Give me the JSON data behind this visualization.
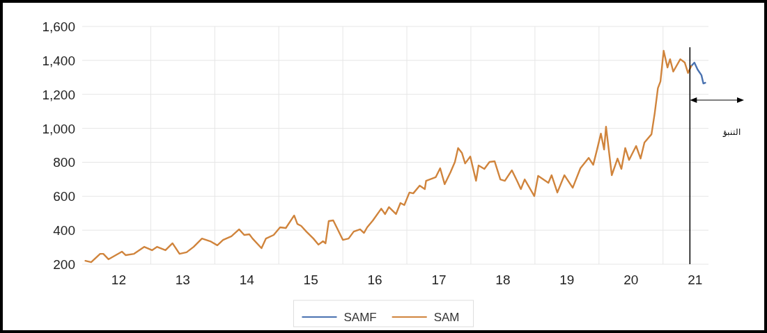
{
  "chart_data": {
    "type": "line",
    "xlim": [
      11.43,
      21.21
    ],
    "xticks": [
      12,
      {
        "value": 12.5,
        "label": null
      },
      13,
      {
        "value": 13.5,
        "label": null
      },
      14,
      {
        "value": 14.5,
        "label": null
      },
      15,
      {
        "value": 15.5,
        "label": null
      },
      16,
      {
        "value": 16.5,
        "label": null
      },
      17,
      {
        "value": 17.5,
        "label": null
      },
      18,
      {
        "value": 18.5,
        "label": null
      },
      19,
      {
        "value": 19.5,
        "label": null
      },
      20,
      {
        "value": 20.5,
        "label": null
      },
      21
    ],
    "ylim": [
      200,
      1600
    ],
    "yticks": [
      {
        "value": 200,
        "label": "200"
      },
      {
        "value": 400,
        "label": "400"
      },
      {
        "value": 600,
        "label": "600"
      },
      {
        "value": 800,
        "label": "800"
      },
      {
        "value": 1000,
        "label": "1,000"
      },
      {
        "value": 1200,
        "label": "1,200"
      },
      {
        "value": 1400,
        "label": "1,400"
      },
      {
        "value": 1600,
        "label": "1,600"
      }
    ],
    "grid": true,
    "legend": "bottom",
    "marker": "none",
    "line_style": "solid",
    "series": [
      {
        "name": "SAMF",
        "color": "#4a72b0",
        "x": [
          20.94,
          20.99,
          21.04,
          21.1,
          21.13,
          21.16
        ],
        "values": [
          1366,
          1387,
          1346,
          1313,
          1264,
          1268
        ]
      },
      {
        "name": "SAM",
        "color": "#d0843c",
        "x": [
          11.48,
          11.57,
          11.71,
          11.76,
          11.84,
          12.05,
          12.11,
          12.24,
          12.4,
          12.52,
          12.6,
          12.73,
          12.84,
          12.95,
          13.06,
          13.17,
          13.3,
          13.43,
          13.54,
          13.63,
          13.76,
          13.88,
          13.96,
          14.04,
          14.09,
          14.23,
          14.3,
          14.42,
          14.52,
          14.61,
          14.74,
          14.79,
          14.85,
          14.93,
          15.04,
          15.12,
          15.19,
          15.23,
          15.28,
          15.35,
          15.42,
          15.5,
          15.59,
          15.67,
          15.77,
          15.83,
          15.88,
          15.97,
          16.1,
          16.16,
          16.22,
          16.33,
          16.4,
          16.46,
          16.54,
          16.6,
          16.7,
          16.78,
          16.8,
          16.95,
          17.02,
          17.09,
          17.18,
          17.25,
          17.3,
          17.36,
          17.41,
          17.49,
          17.58,
          17.62,
          17.71,
          17.79,
          17.87,
          17.96,
          18.03,
          18.14,
          18.22,
          18.28,
          18.34,
          18.49,
          18.55,
          18.71,
          18.76,
          18.85,
          18.96,
          19.09,
          19.21,
          19.34,
          19.41,
          19.47,
          19.53,
          19.58,
          19.61,
          19.7,
          19.79,
          19.85,
          19.91,
          19.97,
          20.08,
          20.15,
          20.21,
          20.32,
          20.37,
          20.42,
          20.46,
          20.51,
          20.57,
          20.61,
          20.66,
          20.77,
          20.84,
          20.89,
          20.94
        ],
        "values": [
          220,
          212,
          261,
          261,
          229,
          274,
          253,
          261,
          302,
          282,
          302,
          282,
          323,
          261,
          270,
          302,
          351,
          335,
          311,
          343,
          364,
          405,
          372,
          376,
          351,
          294,
          351,
          372,
          417,
          413,
          487,
          437,
          425,
          392,
          351,
          315,
          335,
          323,
          454,
          458,
          405,
          343,
          351,
          392,
          405,
          384,
          417,
          458,
          527,
          495,
          536,
          495,
          560,
          548,
          622,
          617,
          663,
          642,
          691,
          712,
          765,
          671,
          740,
          802,
          884,
          855,
          793,
          834,
          691,
          781,
          761,
          802,
          806,
          699,
          691,
          753,
          691,
          642,
          699,
          601,
          720,
          679,
          724,
          622,
          724,
          650,
          765,
          826,
          785,
          875,
          969,
          875,
          1010,
          724,
          822,
          761,
          884,
          814,
          896,
          822,
          916,
          965,
          1088,
          1236,
          1276,
          1457,
          1358,
          1407,
          1334,
          1407,
          1387,
          1326,
          1366
        ]
      }
    ],
    "ref_lines": [
      {
        "axis": "x",
        "value": 20.92,
        "color": "#000000"
      }
    ],
    "annotations": [
      "التنبؤ"
    ]
  }
}
